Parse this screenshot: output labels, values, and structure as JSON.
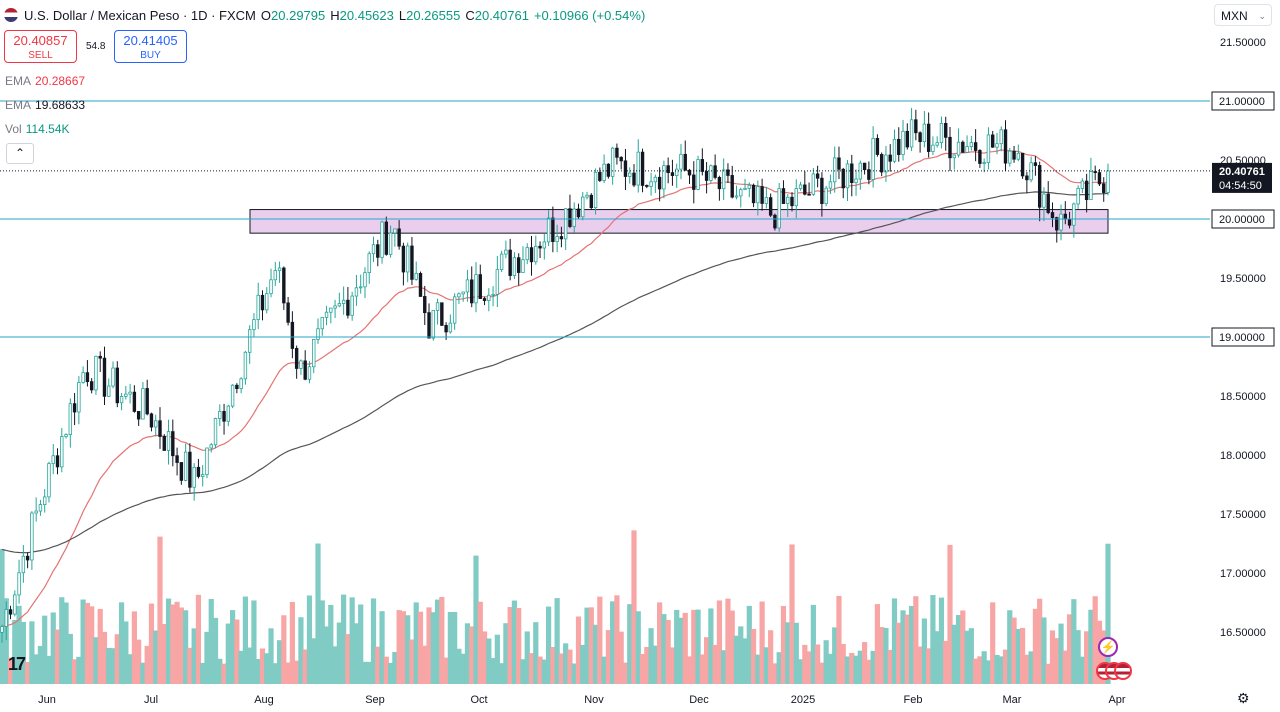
{
  "header": {
    "title": "U.S. Dollar / Mexican Peso · 1D · FXCM",
    "open_label": "O",
    "open": "20.29795",
    "high_label": "H",
    "high": "20.45623",
    "low_label": "L",
    "low": "20.26555",
    "close_label": "C",
    "close": "20.40761",
    "change": "+0.10966 (+0.54%)"
  },
  "trade": {
    "sell_price": "20.40857",
    "sell_label": "SELL",
    "spread": "54.8",
    "buy_price": "20.41405",
    "buy_label": "BUY"
  },
  "indicators": [
    {
      "name": "EMA",
      "value": "20.28667",
      "color": "#f23645"
    },
    {
      "name": "EMA",
      "value": "19.68633",
      "color": "#131722"
    },
    {
      "name": "Vol",
      "value": "114.54K",
      "color": "#089981"
    }
  ],
  "currency": "MXN",
  "price_tag": {
    "price": "20.40761",
    "countdown": "04:54:50"
  },
  "colors": {
    "up": "#26a69a",
    "down": "#131722",
    "ema_fast": "#e57373",
    "ema_slow": "#555555",
    "hline": "#26a5c7",
    "zone_fill": "#e1bee7",
    "vol_up": "#80cbc4",
    "vol_down": "#f8a5a5"
  },
  "chart_data": {
    "type": "candlestick",
    "title": "U.S. Dollar / Mexican Peso · 1D · FXCM",
    "ylim": [
      16.2,
      21.7
    ],
    "y_ticks": [
      "21.50000",
      "21.00000",
      "20.50000",
      "20.00000",
      "19.50000",
      "19.00000",
      "18.50000",
      "18.00000",
      "17.50000",
      "17.00000",
      "16.50000"
    ],
    "x_ticks": [
      "Jun",
      "Jul",
      "Aug",
      "Sep",
      "Oct",
      "Nov",
      "Dec",
      "2025",
      "Feb",
      "Mar",
      "Apr"
    ],
    "horizontal_levels": [
      21.0,
      20.0,
      19.0
    ],
    "support_zone": [
      19.88,
      20.08
    ],
    "key_points": [
      {
        "x": "May 24",
        "close": 16.55
      },
      {
        "x": "Jun 3",
        "close": 17.6
      },
      {
        "x": "Jun 12",
        "close": 18.75
      },
      {
        "x": "Jul 1",
        "close": 18.35
      },
      {
        "x": "Jul 19",
        "close": 17.75
      },
      {
        "x": "Aug 5",
        "close": 19.6
      },
      {
        "x": "Aug 15",
        "close": 18.7
      },
      {
        "x": "Sep 6",
        "close": 19.95
      },
      {
        "x": "Sep 18",
        "close": 19.1
      },
      {
        "x": "Oct 21",
        "close": 19.95
      },
      {
        "x": "Nov 5",
        "close": 20.45
      },
      {
        "x": "Dec 2",
        "close": 20.4
      },
      {
        "x": "Dec 20",
        "close": 20.05
      },
      {
        "x": "Jan 31",
        "close": 20.7
      },
      {
        "x": "Mar 3",
        "close": 20.6
      },
      {
        "x": "Mar 19",
        "close": 19.95
      },
      {
        "x": "Mar 28",
        "close": 20.41
      }
    ],
    "ema_fast_last": 20.28667,
    "ema_slow_last": 19.68633,
    "volume_last": "114.54K"
  }
}
